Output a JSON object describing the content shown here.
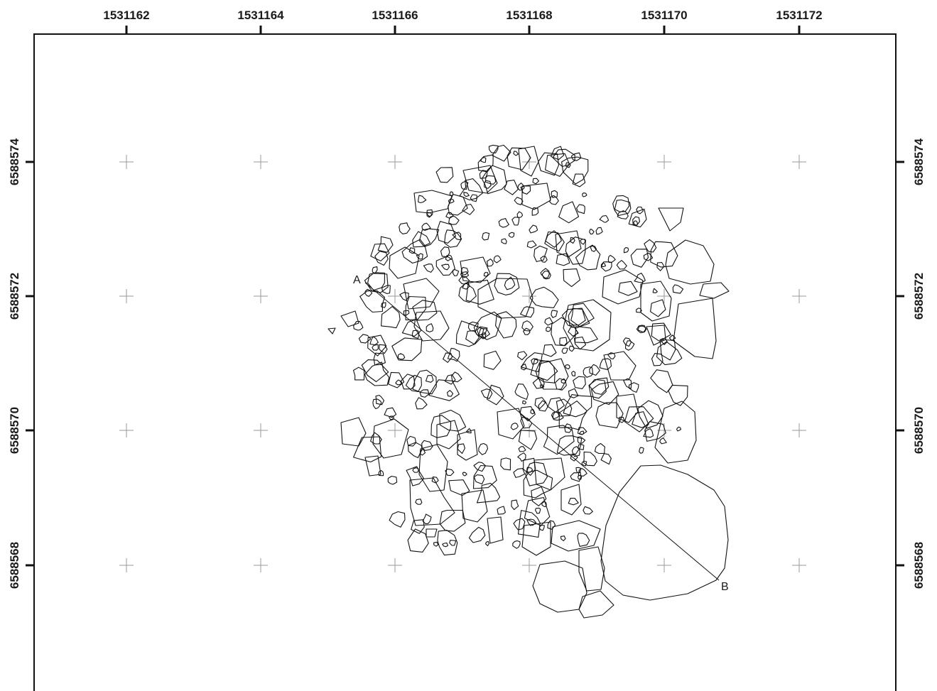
{
  "map": {
    "x_ticks": [
      "1531162",
      "1531164",
      "1531166",
      "1531168",
      "1531170",
      "1531172"
    ],
    "y_ticks": [
      "6588574",
      "6588572",
      "6588570",
      "6588568"
    ],
    "section": {
      "start_label": "A",
      "end_label": "B"
    },
    "colors": {
      "outline": "#111111",
      "grid": "#9a9a9a",
      "background": "#ffffff"
    }
  }
}
